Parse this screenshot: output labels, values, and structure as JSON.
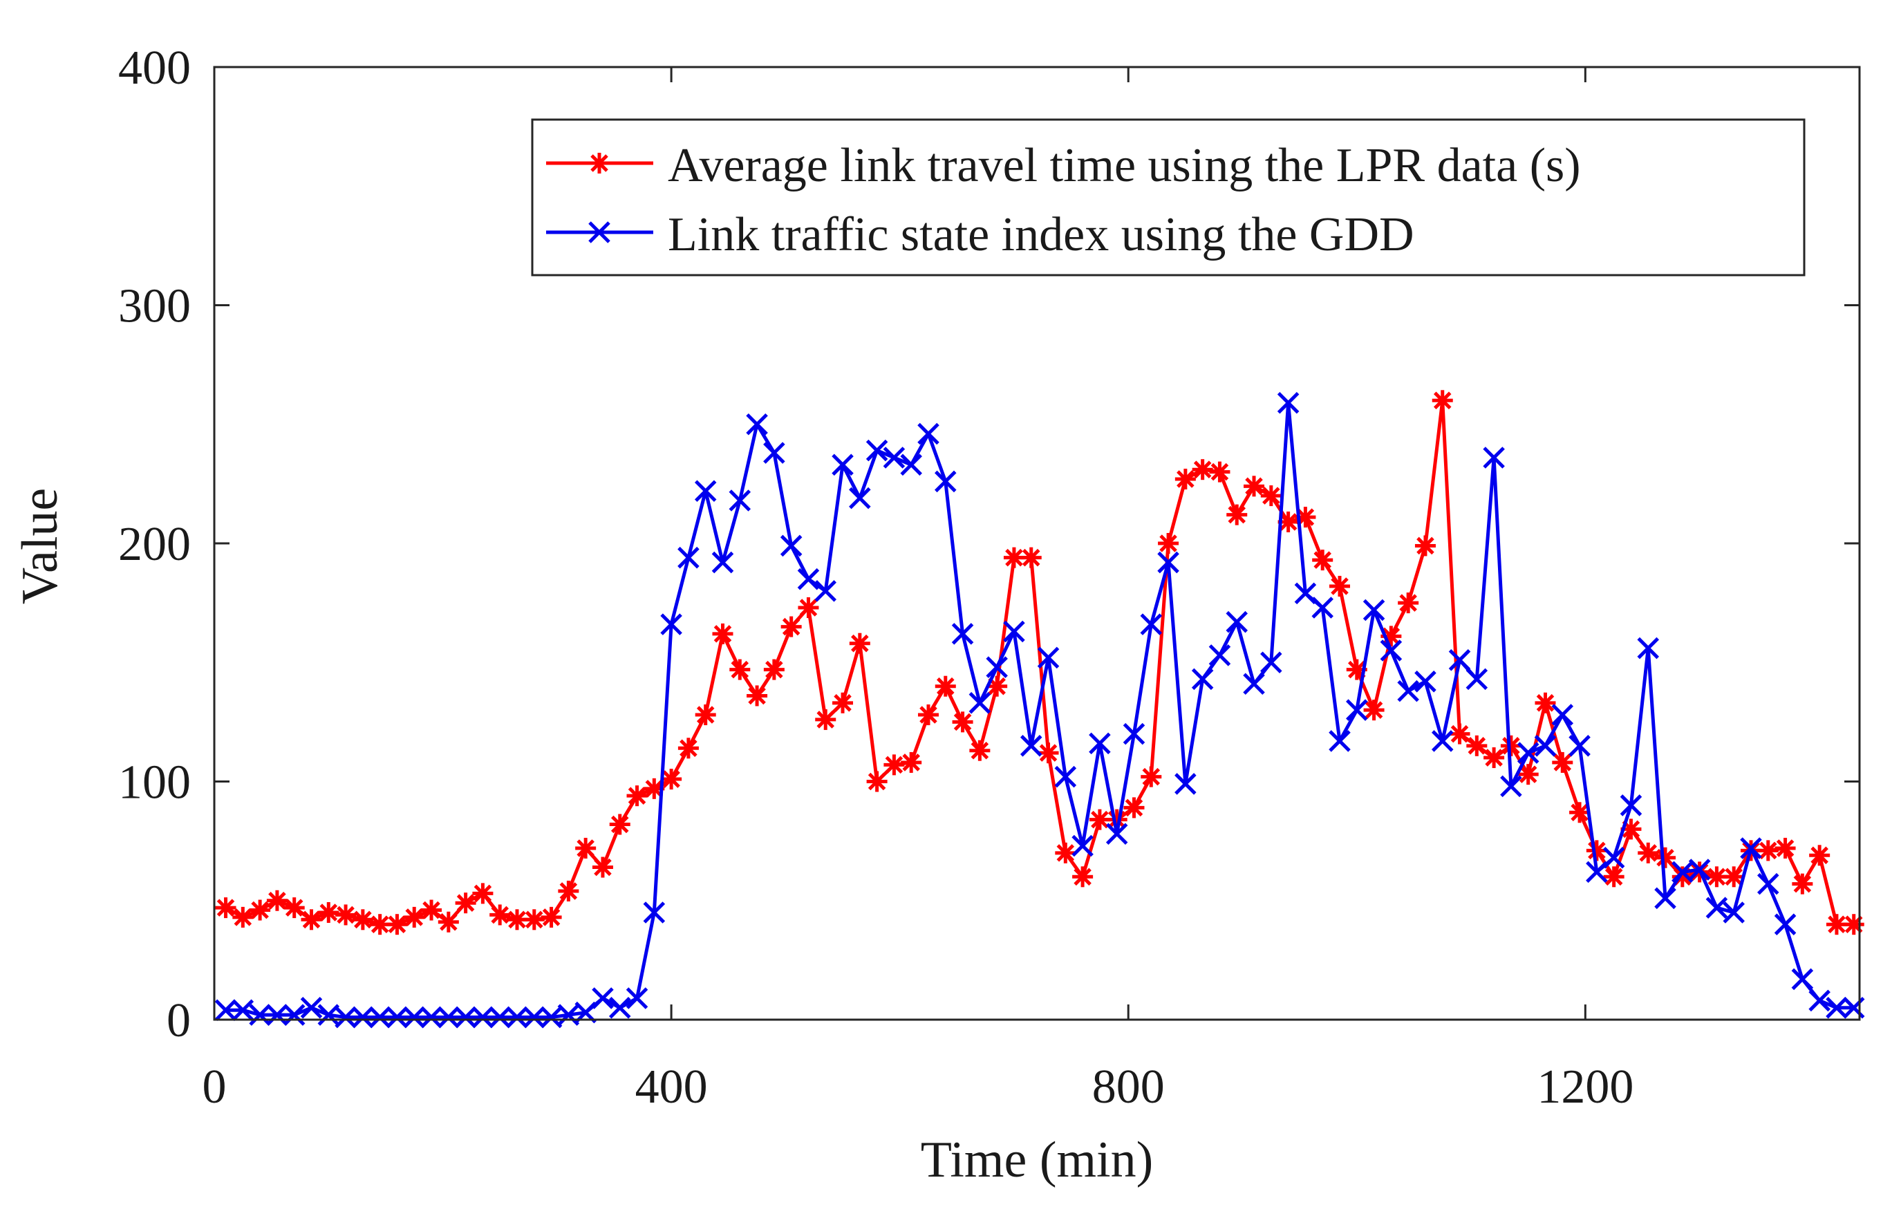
{
  "chart_data": {
    "type": "line",
    "title": "",
    "xlabel": "Time (min)",
    "ylabel": "Value",
    "xlim": [
      0,
      1440
    ],
    "ylim": [
      0,
      400
    ],
    "xticks": [
      0,
      400,
      800,
      1200
    ],
    "yticks": [
      0,
      100,
      200,
      300,
      400
    ],
    "xtick_labels": [
      "0",
      "400",
      "800",
      "1200"
    ],
    "ytick_labels": [
      "0",
      "100",
      "200",
      "300",
      "400"
    ],
    "grid": false,
    "legend_position": "top-right",
    "series": [
      {
        "name": "Average link travel time using the LPR data (s)",
        "color": "#ff0000",
        "marker": "asterisk",
        "x": [
          10,
          25,
          40,
          55,
          70,
          85,
          100,
          115,
          130,
          145,
          160,
          175,
          190,
          205,
          220,
          235,
          250,
          265,
          280,
          295,
          310,
          325,
          340,
          355,
          370,
          385,
          400,
          415,
          430,
          445,
          460,
          475,
          490,
          505,
          520,
          535,
          550,
          565,
          580,
          595,
          610,
          625,
          640,
          655,
          670,
          685,
          700,
          715,
          730,
          745,
          760,
          775,
          790,
          805,
          820,
          835,
          850,
          865,
          880,
          895,
          910,
          925,
          940,
          955,
          970,
          985,
          1000,
          1015,
          1030,
          1045,
          1060,
          1075,
          1090,
          1105,
          1120,
          1135,
          1150,
          1165,
          1180,
          1195,
          1210,
          1225,
          1240,
          1255,
          1270,
          1285,
          1300,
          1315,
          1330,
          1345,
          1360,
          1375,
          1390,
          1405,
          1420,
          1435
        ],
        "values": [
          47,
          43,
          46,
          50,
          47,
          42,
          45,
          44,
          42,
          40,
          40,
          43,
          46,
          41,
          49,
          53,
          44,
          42,
          42,
          43,
          54,
          72,
          64,
          82,
          94,
          97,
          101,
          114,
          128,
          162,
          147,
          136,
          147,
          165,
          173,
          126,
          133,
          158,
          100,
          107,
          108,
          128,
          140,
          125,
          113,
          140,
          194,
          194,
          112,
          70,
          60,
          84,
          84,
          89,
          102,
          200,
          227,
          231,
          230,
          212,
          224,
          220,
          209,
          211,
          193,
          182,
          147,
          130,
          161,
          175,
          199,
          260,
          120,
          115,
          110,
          115,
          103,
          133,
          108,
          87,
          71,
          60,
          80,
          70,
          68,
          60,
          62,
          60,
          60,
          71,
          71,
          72,
          57,
          69,
          40,
          40
        ]
      },
      {
        "name": "Link traffic state index using the GDD",
        "color": "#0000ee",
        "marker": "cross",
        "x": [
          10,
          25,
          40,
          55,
          70,
          85,
          100,
          115,
          130,
          145,
          160,
          175,
          190,
          205,
          220,
          235,
          250,
          265,
          280,
          295,
          310,
          325,
          340,
          355,
          370,
          385,
          400,
          415,
          430,
          445,
          460,
          475,
          490,
          505,
          520,
          535,
          550,
          565,
          580,
          595,
          610,
          625,
          640,
          655,
          670,
          685,
          700,
          715,
          730,
          745,
          760,
          775,
          790,
          805,
          820,
          835,
          850,
          865,
          880,
          895,
          910,
          925,
          940,
          955,
          970,
          985,
          1000,
          1015,
          1030,
          1045,
          1060,
          1075,
          1090,
          1105,
          1120,
          1135,
          1150,
          1165,
          1180,
          1195,
          1210,
          1225,
          1240,
          1255,
          1270,
          1285,
          1300,
          1315,
          1330,
          1345,
          1360,
          1375,
          1390,
          1405,
          1420,
          1435
        ],
        "values": [
          4,
          4,
          2,
          2,
          2,
          5,
          2,
          1,
          1,
          1,
          1,
          1,
          1,
          1,
          1,
          1,
          1,
          1,
          1,
          1,
          2,
          3,
          9,
          5,
          9,
          45,
          166,
          194,
          222,
          192,
          218,
          250,
          238,
          199,
          185,
          180,
          233,
          219,
          239,
          236,
          233,
          246,
          226,
          162,
          133,
          148,
          163,
          115,
          152,
          102,
          73,
          116,
          78,
          120,
          166,
          192,
          99,
          143,
          153,
          167,
          141,
          150,
          259,
          179,
          173,
          117,
          130,
          172,
          155,
          138,
          142,
          117,
          151,
          143,
          236,
          98,
          112,
          115,
          128,
          115,
          62,
          68,
          90,
          156,
          51,
          62,
          63,
          47,
          45,
          72,
          57,
          40,
          17,
          8,
          5,
          5
        ]
      }
    ]
  }
}
